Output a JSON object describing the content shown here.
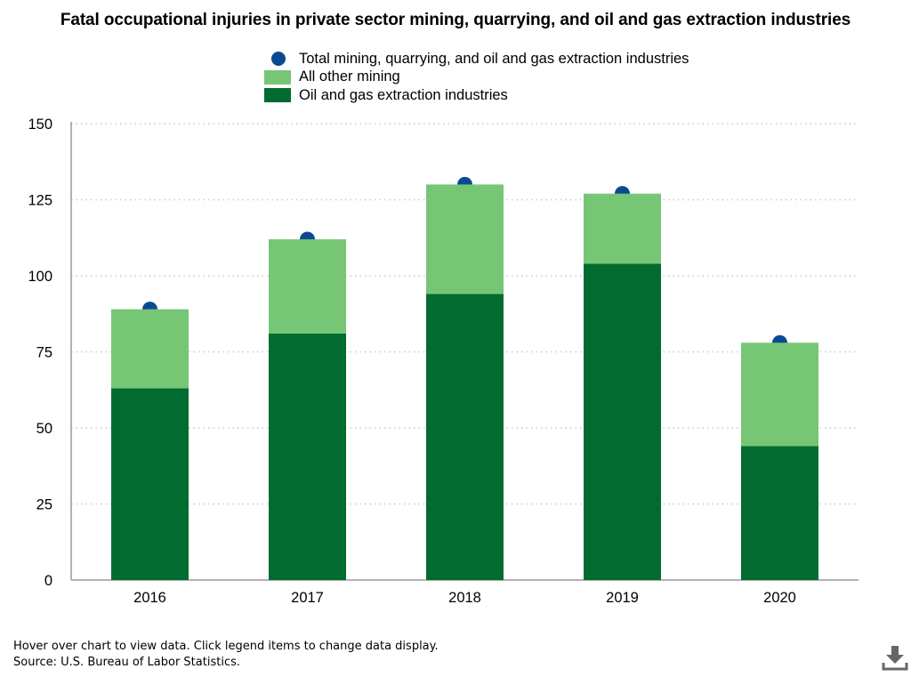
{
  "chart_data": {
    "type": "bar",
    "title": "Fatal occupational injuries in private sector mining, quarrying, and oil and gas extraction industries",
    "categories": [
      "2016",
      "2017",
      "2018",
      "2019",
      "2020"
    ],
    "series": [
      {
        "name": "Oil and gas extraction industries",
        "values": [
          63,
          81,
          94,
          104,
          44
        ],
        "color": "#026c30",
        "stack": true
      },
      {
        "name": "All other mining",
        "values": [
          26,
          31,
          36,
          23,
          34
        ],
        "color": "#76c676",
        "stack": true
      },
      {
        "name": "Total mining, quarrying, and oil and gas extraction industries",
        "values": [
          89,
          112,
          130,
          127,
          78
        ],
        "color": "#0b4a92",
        "marker": "circle"
      }
    ],
    "legend": [
      {
        "name": "Total mining, quarrying, and oil and gas extraction industries",
        "color": "#0b4a92",
        "marker": "circle"
      },
      {
        "name": "All other mining",
        "color": "#76c676",
        "marker": "square"
      },
      {
        "name": "Oil and gas extraction industries",
        "color": "#026c30",
        "marker": "square"
      }
    ],
    "legend_position": "top-center",
    "xlabel": "",
    "ylabel": "",
    "ylim": [
      0,
      150
    ],
    "yticks": [
      "0",
      "25",
      "50",
      "75",
      "100",
      "125",
      "150"
    ],
    "grid": "horizontal-dotted"
  },
  "footer": {
    "note": "Hover over chart to view data. Click legend items to change data display.",
    "source": "Source: U.S. Bureau of Labor Statistics."
  },
  "icons": {
    "download": "download-icon"
  }
}
